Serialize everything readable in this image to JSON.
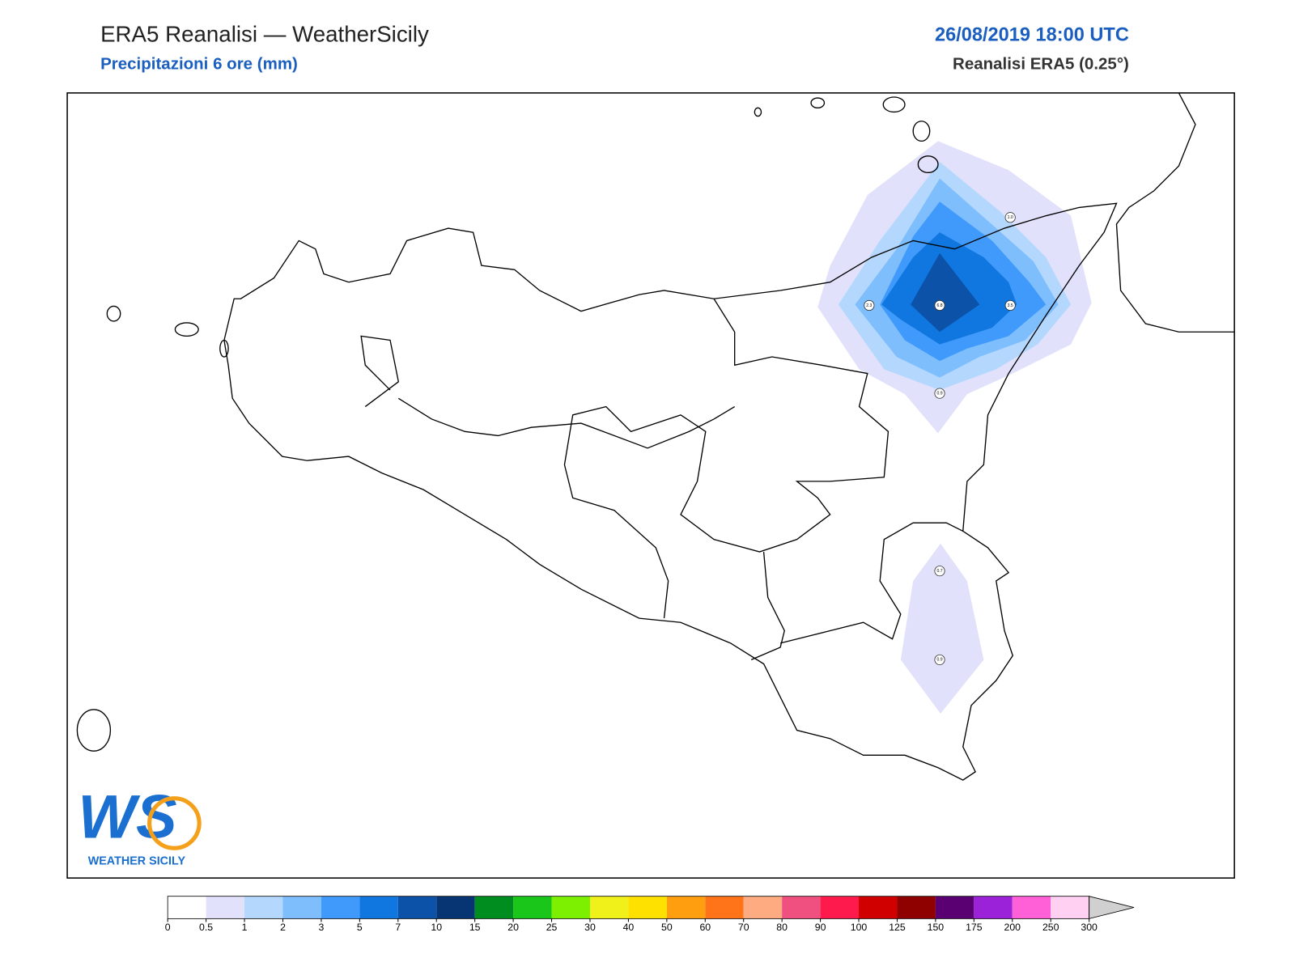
{
  "header": {
    "title": "ERA5 Reanalisi — WeatherSicily",
    "subtitle": "Precipitazioni 6 ore (mm)",
    "date": "26/08/2019 18:00 UTC",
    "source": "Reanalisi ERA5 (0.25°)"
  },
  "map": {
    "points": [
      "1.0",
      "2.3",
      "6.8",
      "3.5",
      "0.9",
      "0.7",
      "0.9"
    ]
  },
  "logo": {
    "mark": "WS",
    "text": "WEATHER SICILY"
  },
  "colorbar": {
    "ticks": [
      0,
      0.5,
      1,
      2,
      3,
      5,
      7,
      10,
      15,
      20,
      25,
      30,
      40,
      50,
      60,
      70,
      80,
      90,
      100,
      125,
      150,
      175,
      200,
      250,
      300
    ],
    "colors": [
      "#ffffff",
      "#e1e1fb",
      "#b4d7fd",
      "#7fbefd",
      "#3f9afc",
      "#1077e0",
      "#0b52a8",
      "#073573",
      "#008d1f",
      "#1bc61b",
      "#7cf000",
      "#f0f01a",
      "#ffe100",
      "#ff9f10",
      "#ff7418",
      "#ffab82",
      "#f05080",
      "#ff1a4d",
      "#d10000",
      "#8f0000",
      "#5a0073",
      "#9b22d8",
      "#ff60d8",
      "#ffd0f2"
    ],
    "extend_color": "#d0d0d0"
  }
}
